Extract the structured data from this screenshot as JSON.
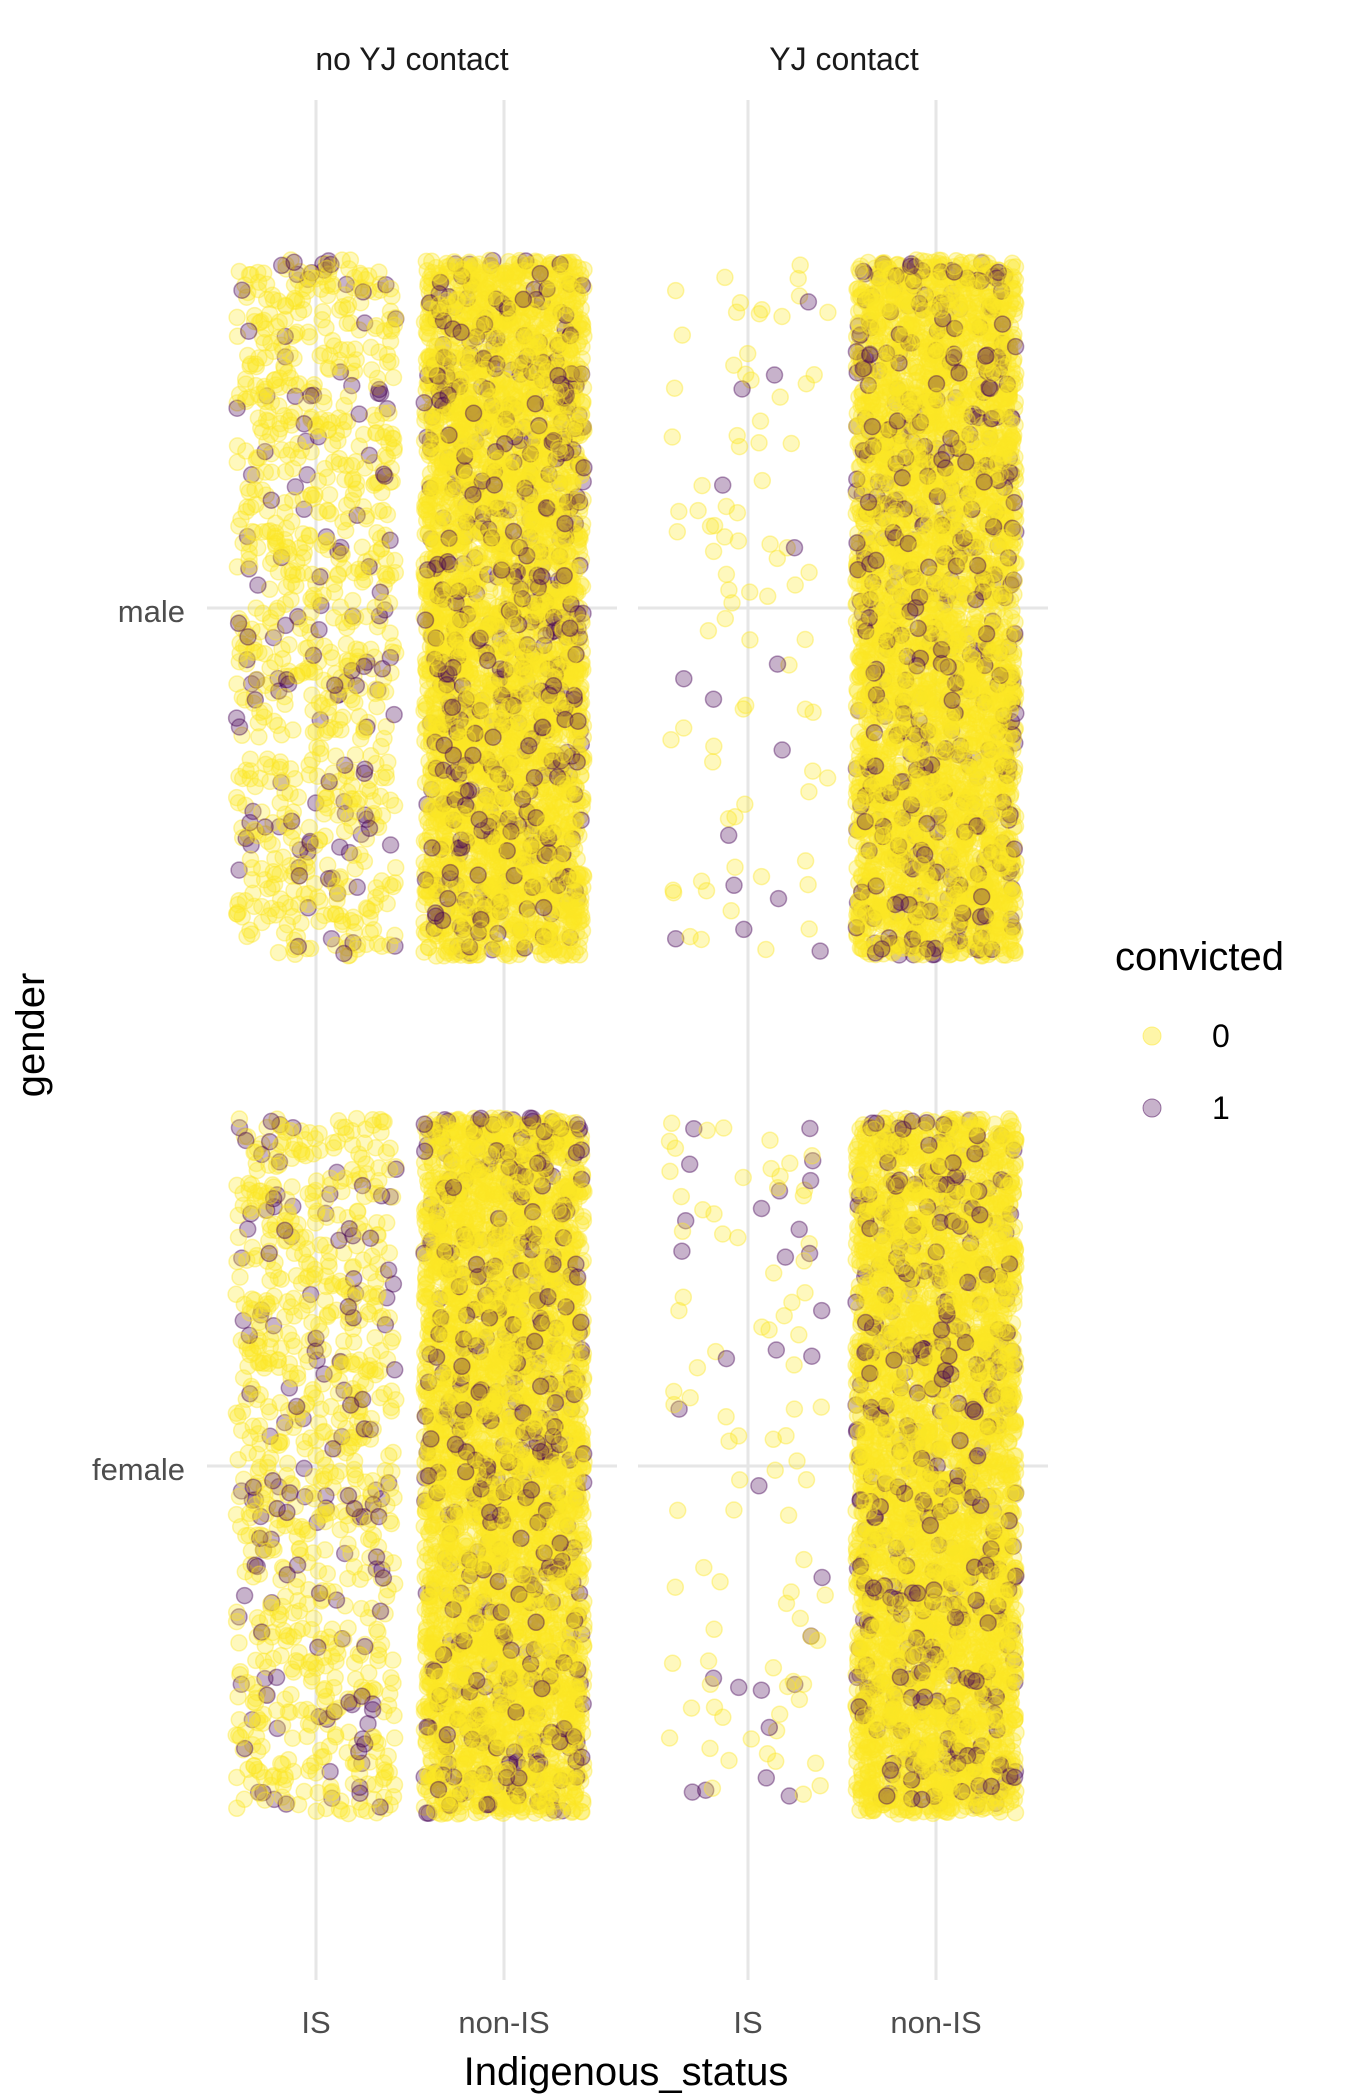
{
  "chart_data": {
    "type": "scatter",
    "subtype": "jittered strip plot, faceted by YJ contact",
    "xlabel": "Indigenous_status",
    "ylabel": "gender",
    "x_categories": [
      "IS",
      "non-IS"
    ],
    "y_categories": [
      "female",
      "male"
    ],
    "facets": [
      {
        "strip": "no YJ contact",
        "groups": [
          {
            "x": "IS",
            "y": "male",
            "approx_points": 900,
            "convicted_share": 0.15
          },
          {
            "x": "non-IS",
            "y": "male",
            "approx_points": 4000,
            "convicted_share": 0.12
          },
          {
            "x": "IS",
            "y": "female",
            "approx_points": 900,
            "convicted_share": 0.14
          },
          {
            "x": "non-IS",
            "y": "female",
            "approx_points": 4000,
            "convicted_share": 0.11
          }
        ]
      },
      {
        "strip": "YJ contact",
        "groups": [
          {
            "x": "IS",
            "y": "male",
            "approx_points": 95,
            "convicted_share": 0.18
          },
          {
            "x": "non-IS",
            "y": "male",
            "approx_points": 4000,
            "convicted_share": 0.12
          },
          {
            "x": "IS",
            "y": "female",
            "approx_points": 115,
            "convicted_share": 0.18
          },
          {
            "x": "non-IS",
            "y": "female",
            "approx_points": 4000,
            "convicted_share": 0.11
          }
        ]
      }
    ],
    "legend": {
      "title": "convicted",
      "entries": [
        {
          "label": "0",
          "color": "#fde725"
        },
        {
          "label": "1",
          "color": "#440154"
        }
      ],
      "position": "right"
    },
    "point_alpha": 0.3,
    "grid": true
  }
}
